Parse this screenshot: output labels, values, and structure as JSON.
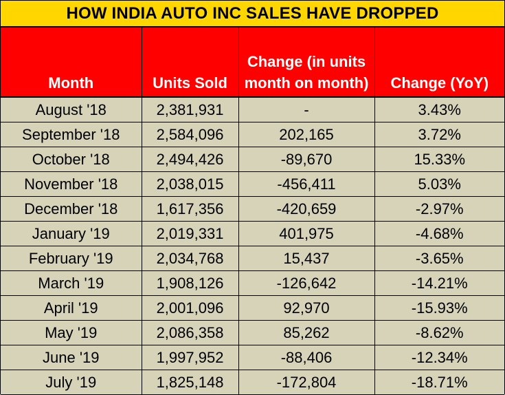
{
  "chart_data": {
    "type": "table",
    "title": "HOW INDIA AUTO INC SALES HAVE DROPPED",
    "columns": [
      "Month",
      "Units Sold",
      "Change (in units month on month)",
      "Change (YoY)"
    ],
    "rows": [
      [
        "August '18",
        "2,381,931",
        "-",
        "3.43%"
      ],
      [
        "September '18",
        "2,584,096",
        "202,165",
        "3.72%"
      ],
      [
        "October '18",
        "2,494,426",
        "-89,670",
        "15.33%"
      ],
      [
        "November '18",
        "2,038,015",
        "-456,411",
        "5.03%"
      ],
      [
        "December '18",
        "1,617,356",
        "-420,659",
        "-2.97%"
      ],
      [
        "January '19",
        "2,019,331",
        "401,975",
        "-4.68%"
      ],
      [
        "February '19",
        "2,034,768",
        "15,437",
        "-3.65%"
      ],
      [
        "March '19",
        "1,908,126",
        "-126,642",
        "-14.21%"
      ],
      [
        "April '19",
        "2,001,096",
        "92,970",
        "-15.93%"
      ],
      [
        "May '19",
        "2,086,358",
        "85,262",
        "-8.62%"
      ],
      [
        "June '19",
        "1,997,952",
        "-88,406",
        "-12.34%"
      ],
      [
        "July '19",
        "1,825,148",
        "-172,804",
        "-18.71%"
      ]
    ],
    "colors": {
      "title_background": "#ffd600",
      "header_background": "#ff0000",
      "header_text": "#ffffff",
      "cell_background": "#d6d3b8"
    }
  }
}
